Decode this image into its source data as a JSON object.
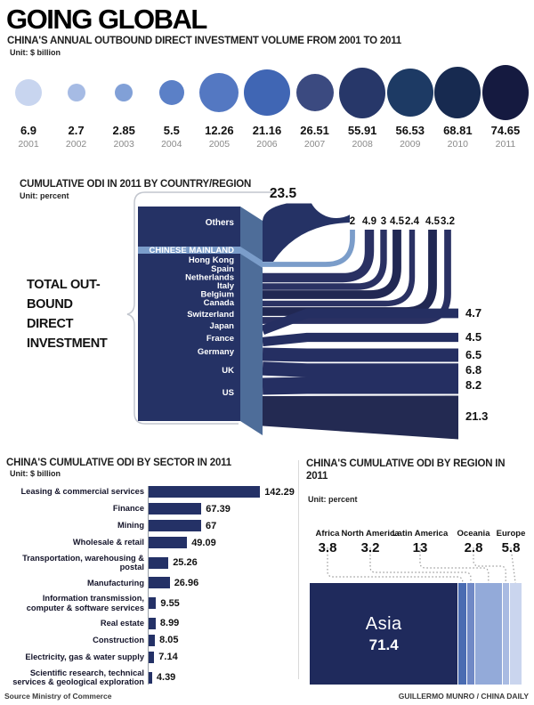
{
  "header": {
    "title": "GOING GLOBAL",
    "subtitle": "CHINA'S ANNUAL OUTBOUND DIRECT INVESTMENT VOLUME FROM 2001 TO 2011",
    "unit": "Unit: $ billion"
  },
  "chart_data": [
    {
      "id": "annual-odi-bubbles",
      "type": "bubble",
      "title": "CHINA'S ANNUAL OUTBOUND DIRECT INVESTMENT VOLUME FROM 2001 TO 2011",
      "unit": "Unit: $ billion",
      "categories": [
        "2001",
        "2002",
        "2003",
        "2004",
        "2005",
        "2006",
        "2007",
        "2008",
        "2009",
        "2010",
        "2011"
      ],
      "values": [
        6.9,
        2.7,
        2.85,
        5.5,
        12.26,
        21.16,
        26.51,
        55.91,
        56.53,
        68.81,
        74.65
      ],
      "value_labels": [
        "6.9",
        "2.7",
        "2.85",
        "5.5",
        "12.26",
        "21.16",
        "26.51",
        "55.91",
        "56.53",
        "68.81",
        "74.65"
      ],
      "bubble_diameters": [
        30,
        20,
        20,
        28,
        44,
        52,
        42,
        57,
        54,
        58,
        62
      ],
      "bubble_colors": [
        "#c8d5ef",
        "#a6bbe4",
        "#81a0d7",
        "#5b80c7",
        "#5478c2",
        "#4066b4",
        "#3b4a80",
        "#273769",
        "#1d3a64",
        "#172a50",
        "#151a40"
      ]
    },
    {
      "id": "cumulative-odi-country-flow",
      "type": "sankey",
      "title": "CUMULATIVE ODI IN 2011 BY COUNTRY/REGION",
      "unit": "Unit: percent",
      "total_label_lines": [
        "TOTAL OUT-",
        "BOUND",
        "DIRECT",
        "INVESTMENT"
      ],
      "others": {
        "label": "Others",
        "value": 23.5,
        "value_label": "23.5"
      },
      "up_flows": [
        {
          "label": "CHINESE MAINLAND",
          "value": 2,
          "value_label": "2",
          "color": "#7b9dca"
        },
        {
          "label": "Hong Kong",
          "value": 4.9,
          "value_label": "4.9",
          "color": "#2a3163"
        },
        {
          "label": "Spain",
          "value": 3,
          "value_label": "3",
          "color": "#2a3163"
        },
        {
          "label": "Netherlands",
          "value": 4.5,
          "value_label": "4.5",
          "color": "#212853"
        },
        {
          "label": "Italy",
          "value": 2.4,
          "value_label": "2.4",
          "color": "#2a3163"
        },
        {
          "label": "Belgium",
          "value": 4.5,
          "value_label": "4.5",
          "color": "#212853"
        },
        {
          "label": "Canada",
          "value": 3.2,
          "value_label": "3.2",
          "color": "#2a3163"
        }
      ],
      "right_flows": [
        {
          "label": "Switzerland",
          "value": 4.7,
          "value_label": "4.7",
          "color": "#252f62"
        },
        {
          "label": "Japan",
          "value": 4.5,
          "value_label": "4.5",
          "color": "#252f62"
        },
        {
          "label": "France",
          "value": 6.5,
          "value_label": "6.5",
          "color": "#252f62"
        },
        {
          "label": "Germany",
          "value": 6.8,
          "value_label": "6.8",
          "color": "#252f62"
        },
        {
          "label": "UK",
          "value": 8.2,
          "value_label": "8.2",
          "color": "#252f62"
        },
        {
          "label": "US",
          "value": 21.3,
          "value_label": "21.3",
          "color": "#232a52"
        }
      ],
      "block_color": "#253265",
      "side_color": "#4e6d99",
      "highlight_color": "#7b9dca"
    },
    {
      "id": "cumulative-odi-by-sector",
      "type": "bar",
      "title": "CHINA'S CUMULATIVE ODI BY SECTOR IN 2011",
      "unit": "Unit: $ billion",
      "bar_color": "#243166",
      "rows": [
        {
          "label_lines": [
            "Leasing & commercial services"
          ],
          "value": 142.29,
          "value_label": "142.29"
        },
        {
          "label_lines": [
            "Finance"
          ],
          "value": 67.39,
          "value_label": "67.39"
        },
        {
          "label_lines": [
            "Mining"
          ],
          "value": 67,
          "value_label": "67"
        },
        {
          "label_lines": [
            "Wholesale & retail"
          ],
          "value": 49.09,
          "value_label": "49.09"
        },
        {
          "label_lines": [
            "Transportation, warehousing & postal"
          ],
          "value": 25.26,
          "value_label": "25.26"
        },
        {
          "label_lines": [
            "Manufacturing"
          ],
          "value": 26.96,
          "value_label": "26.96"
        },
        {
          "label_lines": [
            "Information transmission,",
            "computer & software services"
          ],
          "value": 9.55,
          "value_label": "9.55"
        },
        {
          "label_lines": [
            "Real estate"
          ],
          "value": 8.99,
          "value_label": "8.99"
        },
        {
          "label_lines": [
            "Construction"
          ],
          "value": 8.05,
          "value_label": "8.05"
        },
        {
          "label_lines": [
            "Electricity, gas & water supply"
          ],
          "value": 7.14,
          "value_label": "7.14"
        },
        {
          "label_lines": [
            "Scientific research, technical",
            "services & geological exploration"
          ],
          "value": 4.39,
          "value_label": "4.39"
        }
      ]
    },
    {
      "id": "cumulative-odi-by-region",
      "type": "treemap",
      "title": "CHINA'S CUMULATIVE ODI BY REGION IN 2011",
      "unit": "Unit: percent",
      "regions": [
        {
          "name": "Asia",
          "value": 71.4,
          "value_label": "71.4",
          "color": "#1f2a5c"
        },
        {
          "name": "Africa",
          "value": 3.8,
          "value_label": "3.8",
          "color": "#4a6cb2"
        },
        {
          "name": "North America",
          "value": 3.2,
          "value_label": "3.2",
          "color": "#7089c6"
        },
        {
          "name": "Latin America",
          "value": 13,
          "value_label": "13",
          "color": "#93aad9"
        },
        {
          "name": "Oceania",
          "value": 2.8,
          "value_label": "2.8",
          "color": "#a9bbe2"
        },
        {
          "name": "Europe",
          "value": 5.8,
          "value_label": "5.8",
          "color": "#cad5ee"
        }
      ]
    }
  ],
  "footer": {
    "source": "Source Ministry of Commerce",
    "credit": "GUILLERMO MUNRO / CHINA DAILY"
  }
}
